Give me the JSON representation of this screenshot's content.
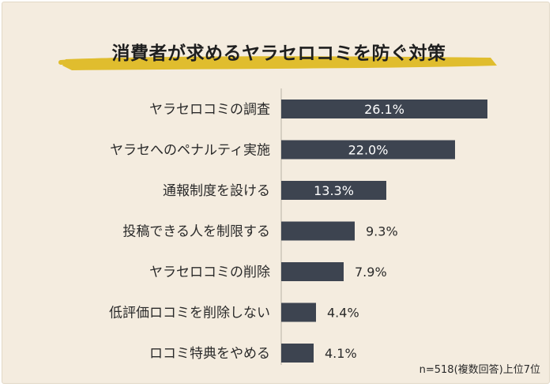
{
  "title": "消費者が求めるヤラセロコミを防ぐ対策",
  "note": "n=518(複数回答)上位7位",
  "colors": {
    "background": "#f4ecdf",
    "bar": "#3d4450",
    "highlight": "#e0bd2e",
    "label_inside": "#ffffff",
    "label_outside": "#2a2a2a"
  },
  "chart_data": {
    "type": "bar",
    "orientation": "horizontal",
    "categories": [
      "ヤラセロコミの調査",
      "ヤラセへのペナルティ実施",
      "通報制度を設ける",
      "投稿できる人を制限する",
      "ヤラセロコミの削除",
      "低評価ロコミを削除しない",
      "ロコミ特典をやめる"
    ],
    "values": [
      26.1,
      22.0,
      13.3,
      9.3,
      7.9,
      4.4,
      4.1
    ],
    "value_labels": [
      "26.1%",
      "22.0%",
      "13.3%",
      "9.3%",
      "7.9%",
      "4.4%",
      "4.1%"
    ],
    "unit": "%",
    "xlim": [
      0,
      28
    ],
    "grid": false,
    "legend": false
  }
}
